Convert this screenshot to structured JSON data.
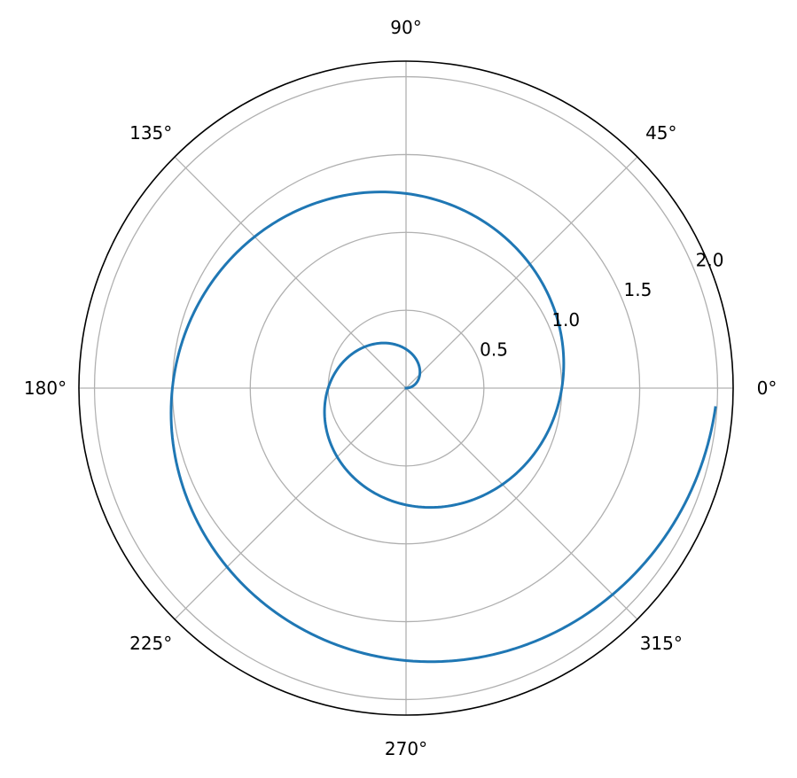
{
  "chart_data": {
    "type": "line",
    "projection": "polar",
    "grid": true,
    "rlim": [
      0,
      2.1
    ],
    "r_ticks": [
      0.5,
      1.0,
      1.5,
      2.0
    ],
    "r_tick_labels": [
      "0.5",
      "1.0",
      "1.5",
      "2.0"
    ],
    "r_label_angle_deg": 22.5,
    "theta_ticks_deg": [
      0,
      45,
      90,
      135,
      180,
      225,
      270,
      315
    ],
    "theta_tick_labels": [
      "0°",
      "45°",
      "90°",
      "135°",
      "180°",
      "225°",
      "270°",
      "315°"
    ],
    "series": [
      {
        "color": "#1f77b4",
        "theta_deg": [
          0,
          9,
          18,
          27,
          36,
          45,
          54,
          63,
          72,
          81,
          90,
          99,
          108,
          117,
          126,
          135,
          144,
          153,
          162,
          171,
          180,
          189,
          198,
          207,
          216,
          225,
          234,
          243,
          252,
          261,
          270,
          279,
          288,
          297,
          306,
          315,
          324,
          333,
          342,
          351,
          360,
          369,
          378,
          387,
          396,
          405,
          414,
          423,
          432,
          441,
          450,
          459,
          468,
          477,
          486,
          495,
          504,
          513,
          522,
          531,
          540,
          549,
          558,
          567,
          576,
          585,
          594,
          603,
          612,
          621,
          630,
          639,
          648,
          657,
          666,
          675,
          684,
          693,
          702,
          711,
          716.4
        ],
        "r": [
          0,
          0.025,
          0.05,
          0.075,
          0.1,
          0.125,
          0.15,
          0.175,
          0.2,
          0.225,
          0.25,
          0.275,
          0.3,
          0.325,
          0.35,
          0.375,
          0.4,
          0.425,
          0.45,
          0.475,
          0.5,
          0.525,
          0.55,
          0.575,
          0.6,
          0.625,
          0.65,
          0.675,
          0.7,
          0.725,
          0.75,
          0.775,
          0.8,
          0.825,
          0.85,
          0.875,
          0.9,
          0.925,
          0.95,
          0.975,
          1.0,
          1.025,
          1.05,
          1.075,
          1.1,
          1.125,
          1.15,
          1.175,
          1.2,
          1.225,
          1.25,
          1.275,
          1.3,
          1.325,
          1.35,
          1.375,
          1.4,
          1.425,
          1.45,
          1.475,
          1.5,
          1.525,
          1.55,
          1.575,
          1.6,
          1.625,
          1.65,
          1.675,
          1.7,
          1.725,
          1.75,
          1.775,
          1.8,
          1.825,
          1.85,
          1.875,
          1.9,
          1.925,
          1.95,
          1.975,
          1.99
        ]
      }
    ]
  }
}
